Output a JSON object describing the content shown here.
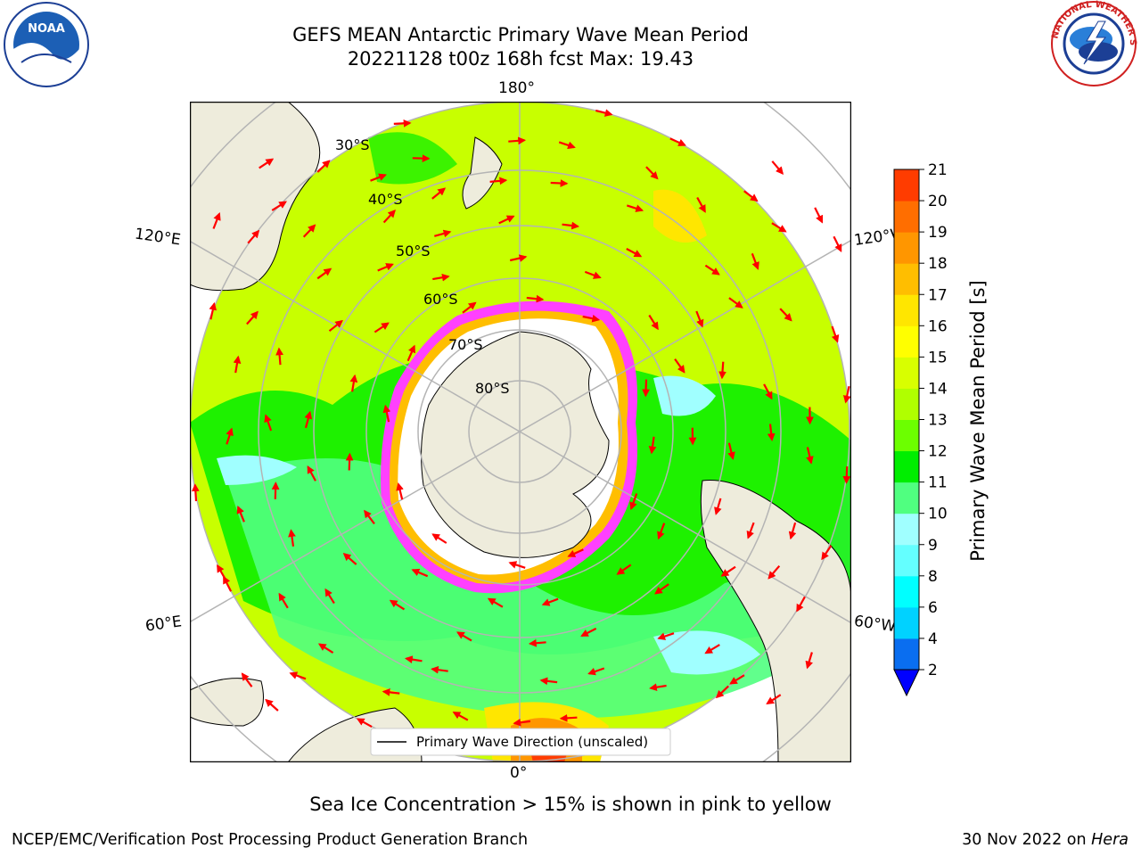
{
  "header": {
    "title_line1": "GEFS MEAN Antarctic Primary Wave Mean Period",
    "title_line2": "20221128 t00z 168h fcst   Max: 19.43"
  },
  "logos": {
    "noaa_text": "NOAA",
    "nws_text": "NATIONAL WEATHER SERVICE"
  },
  "map": {
    "longitude_labels": {
      "top": "180°",
      "bottom": "0°",
      "left_upper": "120°E",
      "left_lower": "60°E",
      "right_upper": "120°W",
      "right_lower": "60°W"
    },
    "latitude_labels": [
      "30°S",
      "40°S",
      "50°S",
      "60°S",
      "70°S",
      "80°S"
    ],
    "legend_label": "Primary Wave Direction (unscaled)",
    "colors": {
      "land": "#eeecdc",
      "ice": "#ffffff",
      "arrow": "#ff0000",
      "grid": "#b4b4b4"
    }
  },
  "colorbar": {
    "label": "Primary Wave Mean Period [s]",
    "ticks": [
      "2",
      "4",
      "6",
      "8",
      "9",
      "10",
      "11",
      "12",
      "13",
      "14",
      "15",
      "16",
      "17",
      "18",
      "19",
      "20",
      "21"
    ],
    "colors": [
      "#0a6ef0",
      "#00d2ff",
      "#00ffff",
      "#64ffff",
      "#a0ffff",
      "#50ff80",
      "#00ee00",
      "#6cff00",
      "#b0ff00",
      "#d8ff00",
      "#ffff00",
      "#ffe600",
      "#ffbe00",
      "#ff9600",
      "#ff6e00",
      "#ff3c00",
      "#ff0000"
    ],
    "under_color": "#0000ff"
  },
  "footer": {
    "caption": "Sea Ice Concentration > 15% is shown in pink to yellow",
    "left": "NCEP/EMC/Verification Post Processing Product Generation Branch",
    "right_date": "30 Nov 2022 on ",
    "right_host": "Hera"
  }
}
